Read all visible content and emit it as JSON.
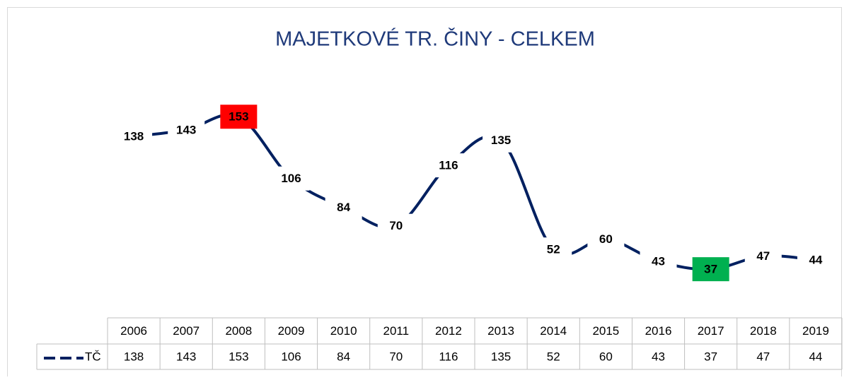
{
  "chart_data": {
    "type": "line",
    "title": "MAJETKOVÉ TR. ČINY - CELKEM",
    "categories": [
      "2006",
      "2007",
      "2008",
      "2009",
      "2010",
      "2011",
      "2012",
      "2013",
      "2014",
      "2015",
      "2016",
      "2017",
      "2018",
      "2019"
    ],
    "series": [
      {
        "name": "TČ",
        "color": "#002060",
        "values": [
          138,
          143,
          153,
          106,
          84,
          70,
          116,
          135,
          52,
          60,
          43,
          37,
          47,
          44
        ]
      }
    ],
    "ylim": [
      0,
      180
    ],
    "smooth": true,
    "data_table": true,
    "highlight_max_color": "#ff0000",
    "highlight_min_color": "#00b050"
  }
}
